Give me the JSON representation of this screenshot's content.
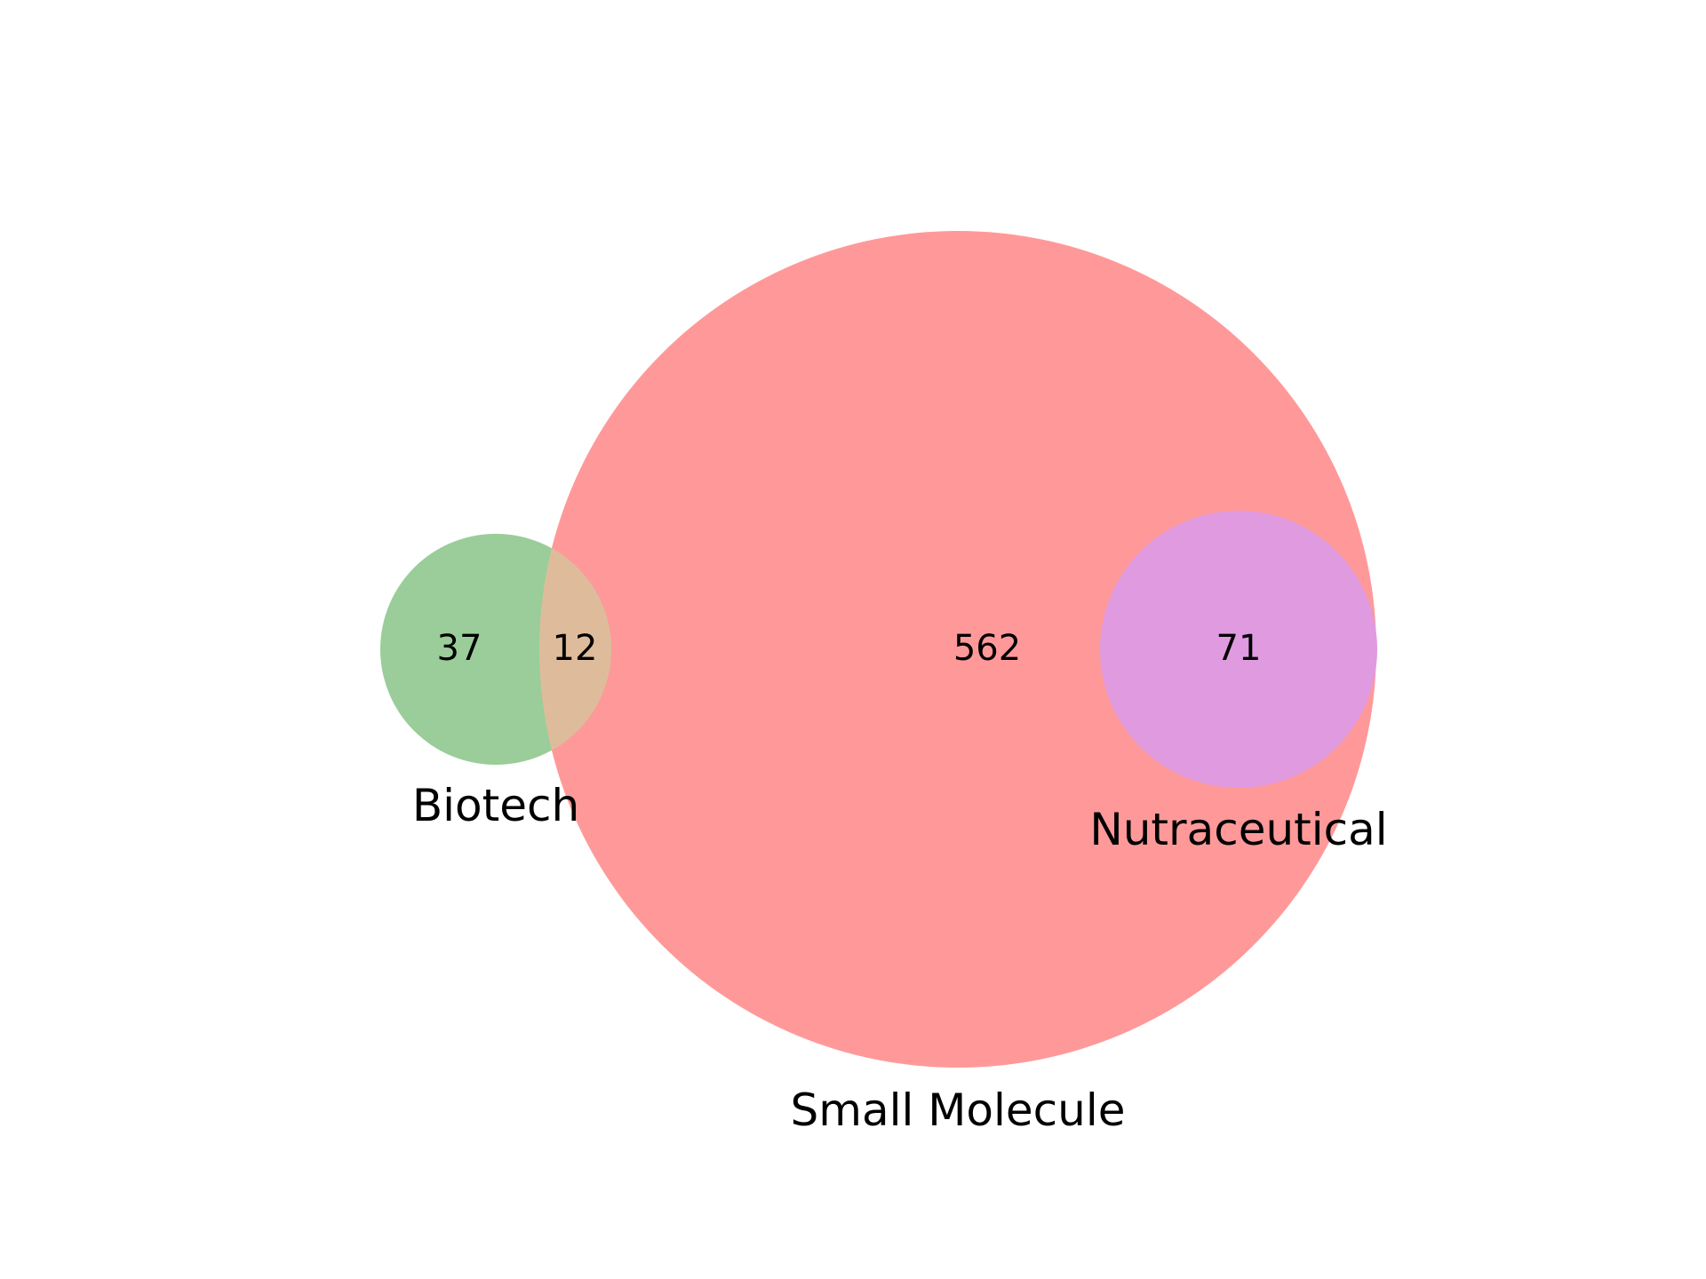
{
  "diagram": {
    "type": "venn",
    "sets": [
      {
        "key": "biotech",
        "label": "Biotech",
        "color": "#9ACD99"
      },
      {
        "key": "small_molecule",
        "label": "Small Molecule",
        "color": "#FF9999"
      },
      {
        "key": "nutraceutical",
        "label": "Nutraceutical",
        "color": "#E09AE0"
      }
    ],
    "regions": {
      "biotech_only": "37",
      "biotech_and_small_molecule": "12",
      "small_molecule_only": "562",
      "small_molecule_and_nutraceutical": "71"
    },
    "colors": {
      "biotech": "#9ACD99",
      "small_molecule": "#FF9999",
      "nutraceutical": "#E09AE0",
      "overlap_biotech_small_molecule": "#DEBC9B"
    }
  }
}
